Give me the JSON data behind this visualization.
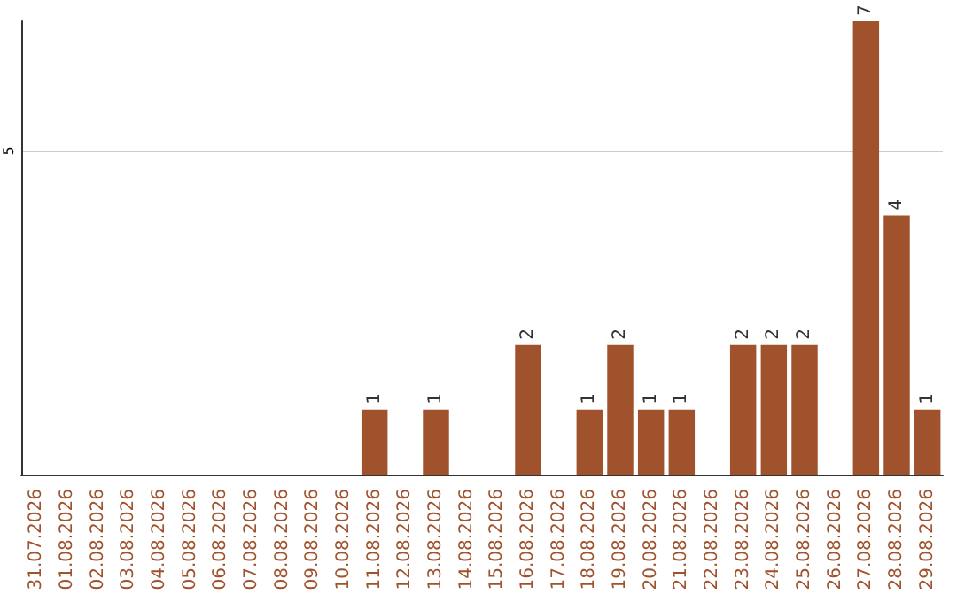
{
  "chart_data": {
    "type": "bar",
    "categories": [
      "31.07.2026",
      "01.08.2026",
      "02.08.2026",
      "03.08.2026",
      "04.08.2026",
      "05.08.2026",
      "06.08.2026",
      "07.08.2026",
      "08.08.2026",
      "09.08.2026",
      "10.08.2026",
      "11.08.2026",
      "12.08.2026",
      "13.08.2026",
      "14.08.2026",
      "15.08.2026",
      "16.08.2026",
      "17.08.2026",
      "18.08.2026",
      "19.08.2026",
      "20.08.2026",
      "21.08.2026",
      "22.08.2026",
      "23.08.2026",
      "24.08.2026",
      "25.08.2026",
      "26.08.2026",
      "27.08.2026",
      "28.08.2026",
      "29.08.2026"
    ],
    "values": [
      0,
      0,
      0,
      0,
      0,
      0,
      0,
      0,
      0,
      0,
      0,
      1,
      0,
      1,
      0,
      0,
      2,
      0,
      1,
      2,
      1,
      1,
      0,
      2,
      2,
      2,
      0,
      7,
      4,
      1
    ],
    "value_labels": [
      null,
      null,
      null,
      null,
      null,
      null,
      null,
      null,
      null,
      null,
      null,
      "1",
      null,
      "1",
      null,
      null,
      "2",
      null,
      "1",
      "2",
      "1",
      "1",
      null,
      "2",
      "2",
      "2",
      null,
      "7",
      "4",
      "1"
    ],
    "color": "#a0522d",
    "ylim": [
      0,
      7
    ],
    "yticks": [
      5
    ],
    "grid": "y"
  }
}
